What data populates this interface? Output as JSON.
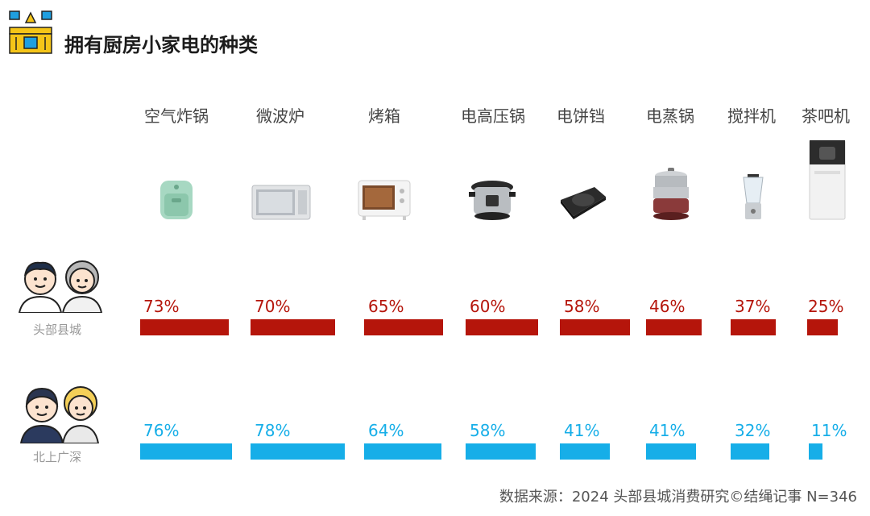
{
  "title": "拥有厨房小家电的种类",
  "categories": [
    "空气炸锅",
    "微波炉",
    "烤箱",
    "电高压锅",
    "电饼铛",
    "电蒸锅",
    "搅拌机",
    "茶吧机"
  ],
  "appliance_icons": [
    "air-fryer-icon",
    "microwave-icon",
    "oven-icon",
    "pressure-cooker-icon",
    "electric-griddle-icon",
    "electric-steamer-icon",
    "blender-icon",
    "tea-bar-machine-icon"
  ],
  "groups": [
    {
      "label": "头部县城",
      "color": "#b5150b",
      "icon": "couple-avatar-icon"
    },
    {
      "label": "北上广深",
      "color": "#16aee8",
      "icon": "couple-avatar-icon"
    }
  ],
  "chart_data": {
    "type": "bar",
    "categories": [
      "空气炸锅",
      "微波炉",
      "烤箱",
      "电高压锅",
      "电饼铛",
      "电蒸锅",
      "搅拌机",
      "茶吧机"
    ],
    "series": [
      {
        "name": "头部县城",
        "values": [
          73,
          70,
          65,
          60,
          58,
          46,
          37,
          25
        ],
        "labels": [
          "73%",
          "70%",
          "65%",
          "60%",
          "58%",
          "46%",
          "37%",
          "25%"
        ]
      },
      {
        "name": "北上广深",
        "values": [
          76,
          78,
          64,
          58,
          41,
          41,
          32,
          11
        ],
        "labels": [
          "76%",
          "78%",
          "64%",
          "58%",
          "41%",
          "41%",
          "32%",
          "11%"
        ]
      }
    ],
    "unit": "%",
    "title": "拥有厨房小家电的种类"
  },
  "source": "数据来源：2024 头部县城消费研究©结绳记事 N=346"
}
